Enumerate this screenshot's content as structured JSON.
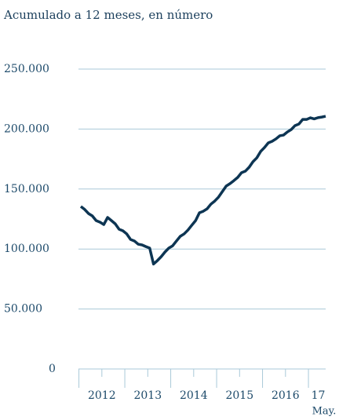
{
  "chart_data": {
    "type": "line",
    "title": "Acumulado a 12 meses, en número",
    "categories": [
      null,
      null,
      null,
      null,
      null,
      null,
      null,
      null,
      null,
      null,
      null,
      null,
      null,
      null,
      null,
      null,
      null,
      null,
      null,
      null,
      null,
      null,
      null,
      null,
      null,
      null,
      null,
      null,
      null,
      null,
      null,
      null,
      null,
      null,
      null,
      null,
      null,
      null,
      null,
      null,
      null,
      null,
      null,
      null,
      null,
      null,
      null,
      null,
      null,
      null,
      null,
      null,
      null,
      null,
      null,
      null,
      null,
      null,
      null,
      null,
      null,
      null,
      null,
      null,
      null
    ],
    "x_labels": [
      "2012",
      "2013",
      "2014",
      "2015",
      "2016",
      "17"
    ],
    "x_note": "May.",
    "series": [
      {
        "color": "#0d3553",
        "values": [
          135.5,
          133,
          129.6,
          127.6,
          123.7,
          122.4,
          120.4,
          126.3,
          123.7,
          121,
          116.5,
          115.2,
          112.6,
          108,
          106.7,
          104,
          103.4,
          102,
          100.8,
          87.5,
          90.3,
          93.6,
          97.5,
          100.8,
          102.7,
          106.7,
          110.6,
          112.6,
          115.8,
          119.8,
          123.7,
          130.2,
          131.5,
          133.5,
          137.4,
          140,
          143.3,
          147.9,
          152.5,
          154.5,
          157,
          159.7,
          163.6,
          164.9,
          168.2,
          172.8,
          176,
          181.3,
          184.6,
          188.5,
          189.8,
          191.8,
          194.4,
          195,
          197.6,
          199.6,
          202.9,
          204.2,
          208,
          208,
          209.4,
          208.5,
          209.5,
          210,
          210.7
        ]
      }
    ],
    "ylim": [
      0,
      250000
    ],
    "yunit": 1000,
    "yticks": [
      0,
      {
        "value": 50000,
        "label": "50.000"
      },
      {
        "value": 100000,
        "label": "100.000"
      },
      {
        "value": 150000,
        "label": "150.000"
      },
      {
        "value": 200000,
        "label": "200.000"
      },
      {
        "value": 250000,
        "label": "250.000"
      }
    ],
    "grid": true,
    "grid_color": "#a9c9d8"
  }
}
